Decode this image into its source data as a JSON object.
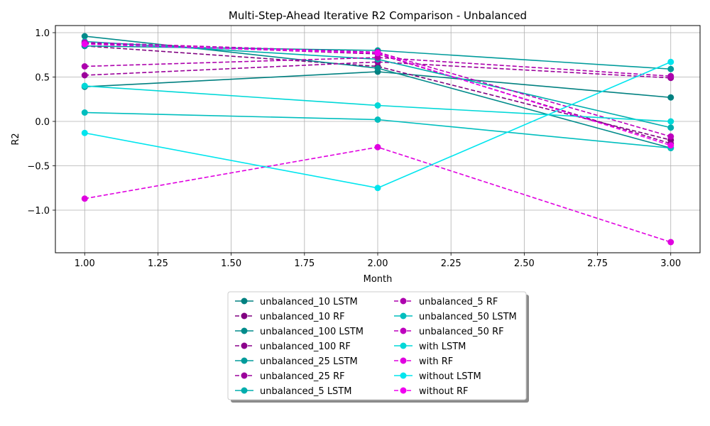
{
  "chart_data": {
    "type": "line",
    "title": "Multi-Step-Ahead Iterative R2 Comparison - Unbalanced",
    "xlabel": "Month",
    "ylabel": "R2",
    "xlim": [
      0.9,
      3.1
    ],
    "ylim": [
      -1.48,
      1.08
    ],
    "xticks": [
      1.0,
      1.25,
      1.5,
      1.75,
      2.0,
      2.25,
      2.5,
      2.75,
      3.0
    ],
    "xtick_labels": [
      "1.00",
      "1.25",
      "1.50",
      "1.75",
      "2.00",
      "2.25",
      "2.50",
      "2.75",
      "3.00"
    ],
    "yticks": [
      -1.0,
      -0.5,
      0.0,
      0.5,
      1.0
    ],
    "ytick_labels": [
      "−1.0",
      "−0.5",
      "0.0",
      "0.5",
      "1.0"
    ],
    "grid": true,
    "legend_placement": "bottom-center",
    "x": [
      1,
      2,
      3
    ],
    "series": [
      {
        "name": "unbalanced_10 LSTM",
        "values": [
          0.39,
          0.56,
          0.27
        ],
        "color": "#008080",
        "dash": "solid"
      },
      {
        "name": "unbalanced_10 RF",
        "values": [
          0.85,
          0.62,
          -0.21
        ],
        "color": "#800080",
        "dash": "dashed"
      },
      {
        "name": "unbalanced_100 LSTM",
        "values": [
          0.96,
          0.6,
          -0.3
        ],
        "color": "#008b8b",
        "dash": "solid"
      },
      {
        "name": "unbalanced_100 RF",
        "values": [
          0.88,
          0.76,
          -0.25
        ],
        "color": "#8b008b",
        "dash": "dashed"
      },
      {
        "name": "unbalanced_25 LSTM",
        "values": [
          0.85,
          0.8,
          0.59
        ],
        "color": "#009b9b",
        "dash": "solid"
      },
      {
        "name": "unbalanced_25 RF",
        "values": [
          0.52,
          0.67,
          0.49
        ],
        "color": "#9b009b",
        "dash": "dashed"
      },
      {
        "name": "unbalanced_5 LSTM",
        "values": [
          0.9,
          0.7,
          -0.07
        ],
        "color": "#00adad",
        "dash": "solid"
      },
      {
        "name": "unbalanced_5 RF",
        "values": [
          0.62,
          0.72,
          0.51
        ],
        "color": "#ad00ad",
        "dash": "dashed"
      },
      {
        "name": "unbalanced_50 LSTM",
        "values": [
          0.1,
          0.02,
          -0.3
        ],
        "color": "#00bebe",
        "dash": "solid"
      },
      {
        "name": "unbalanced_50 RF",
        "values": [
          0.89,
          0.78,
          -0.17
        ],
        "color": "#be00be",
        "dash": "dashed"
      },
      {
        "name": "with LSTM",
        "values": [
          0.4,
          0.18,
          0.0
        ],
        "color": "#00d8d8",
        "dash": "solid"
      },
      {
        "name": "with RF",
        "values": [
          -0.87,
          -0.29,
          -1.36
        ],
        "color": "#e000e0",
        "dash": "dashed"
      },
      {
        "name": "without LSTM",
        "values": [
          -0.13,
          -0.75,
          0.67
        ],
        "color": "#00e5ee",
        "dash": "solid"
      },
      {
        "name": "without RF",
        "values": [
          0.87,
          0.77,
          -0.27
        ],
        "color": "#f000f0",
        "dash": "dashed"
      }
    ]
  }
}
